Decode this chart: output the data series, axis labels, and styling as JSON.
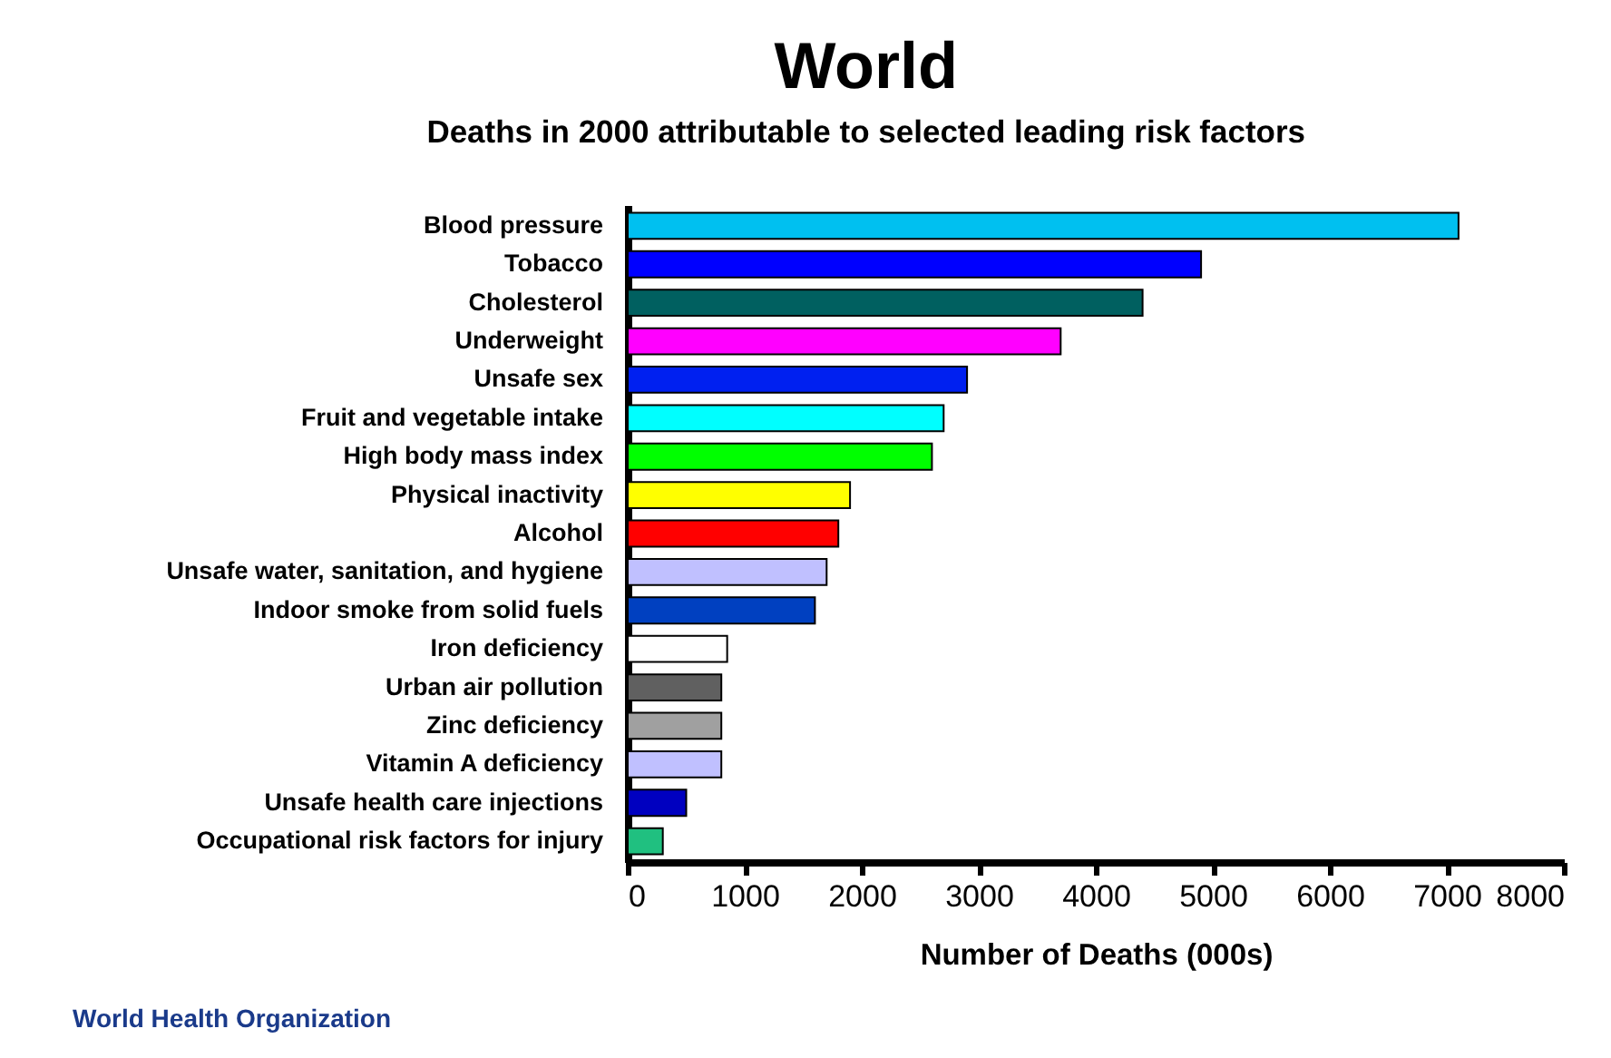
{
  "chart_data": {
    "type": "bar",
    "orientation": "horizontal",
    "title": "World",
    "subtitle": "Deaths in 2000 attributable to selected leading risk factors",
    "xlabel": "Number of Deaths (000s)",
    "categories": [
      "Blood pressure",
      "Tobacco",
      "Cholesterol",
      "Underweight",
      "Unsafe sex",
      "Fruit and vegetable intake",
      "High body mass index",
      "Physical inactivity",
      "Alcohol",
      "Unsafe water, sanitation, and hygiene",
      "Indoor smoke from solid fuels",
      "Iron deficiency",
      "Urban air pollution",
      "Zinc deficiency",
      "Vitamin A deficiency",
      "Unsafe health care injections",
      "Occupational risk factors for injury"
    ],
    "values": [
      7100,
      4900,
      4400,
      3700,
      2900,
      2700,
      2600,
      1900,
      1800,
      1700,
      1600,
      850,
      800,
      800,
      800,
      500,
      300
    ],
    "colors": [
      "#00c0f0",
      "#0000ff",
      "#006060",
      "#ff00ff",
      "#0020f0",
      "#00ffff",
      "#00ff00",
      "#ffff00",
      "#ff0000",
      "#c0c0ff",
      "#0040c0",
      "#ffffff",
      "#606060",
      "#a0a0a0",
      "#c0c0ff",
      "#0000c0",
      "#20c080"
    ],
    "xlim": [
      0,
      8000
    ],
    "xticks": [
      0,
      1000,
      2000,
      3000,
      4000,
      5000,
      6000,
      7000,
      8000
    ],
    "grid": false,
    "annotations": [
      "World Health Organization"
    ]
  }
}
